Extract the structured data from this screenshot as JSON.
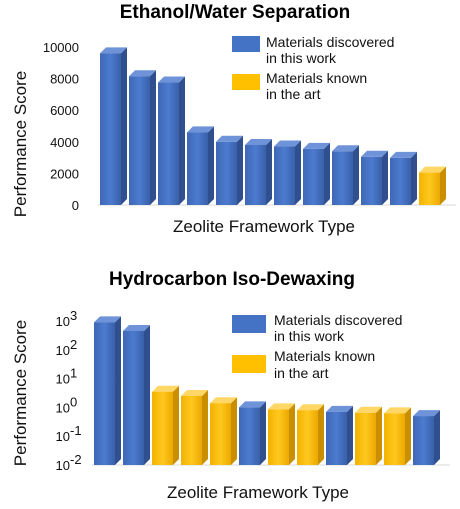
{
  "chart_data": [
    {
      "type": "bar",
      "title": "Ethanol/Water Separation",
      "xlabel": "Zeolite Framework Type",
      "ylabel": "Performance Score",
      "ylim": [
        0,
        10000
      ],
      "yticks": [
        "0",
        "2000",
        "4000",
        "6000",
        "8000",
        "10000"
      ],
      "ytick_values": [
        0,
        2000,
        4000,
        6000,
        8000,
        10000
      ],
      "scale": "linear",
      "legend": [
        {
          "label_lines": [
            "Materials discovered",
            "in this work"
          ],
          "color": "#4472C4"
        },
        {
          "label_lines": [
            "Materials known",
            "in the art"
          ],
          "color": "#FFC000"
        }
      ],
      "legend_position": "top-right",
      "values": [
        9600,
        8150,
        7750,
        4600,
        4000,
        3800,
        3700,
        3550,
        3400,
        3050,
        2980,
        2050
      ],
      "groups": [
        0,
        0,
        0,
        0,
        0,
        0,
        0,
        0,
        0,
        0,
        0,
        1
      ]
    },
    {
      "type": "bar",
      "title": "Hydrocarbon Iso-Dewaxing",
      "xlabel": "Zeolite Framework Type",
      "ylabel": "Performance Score",
      "ylim": [
        0.01,
        1000
      ],
      "yticks": [
        "10",
        "10",
        "10",
        "10",
        "10",
        "10"
      ],
      "ytick_exponents": [
        "-2",
        "-1",
        "0",
        "1",
        "2",
        "3"
      ],
      "ytick_values": [
        0.01,
        0.1,
        1,
        10,
        100,
        1000
      ],
      "scale": "log",
      "legend": [
        {
          "label_lines": [
            "Materials discovered",
            "in this work"
          ],
          "color": "#4472C4"
        },
        {
          "label_lines": [
            "Materials known",
            "in the art"
          ],
          "color": "#FFC000"
        }
      ],
      "legend_position": "top-right",
      "values": [
        900,
        450,
        3.5,
        2.5,
        1.4,
        1.0,
        0.85,
        0.8,
        0.7,
        0.65,
        0.62,
        0.5
      ],
      "groups": [
        0,
        0,
        1,
        1,
        1,
        0,
        1,
        1,
        0,
        1,
        1,
        0
      ]
    }
  ]
}
